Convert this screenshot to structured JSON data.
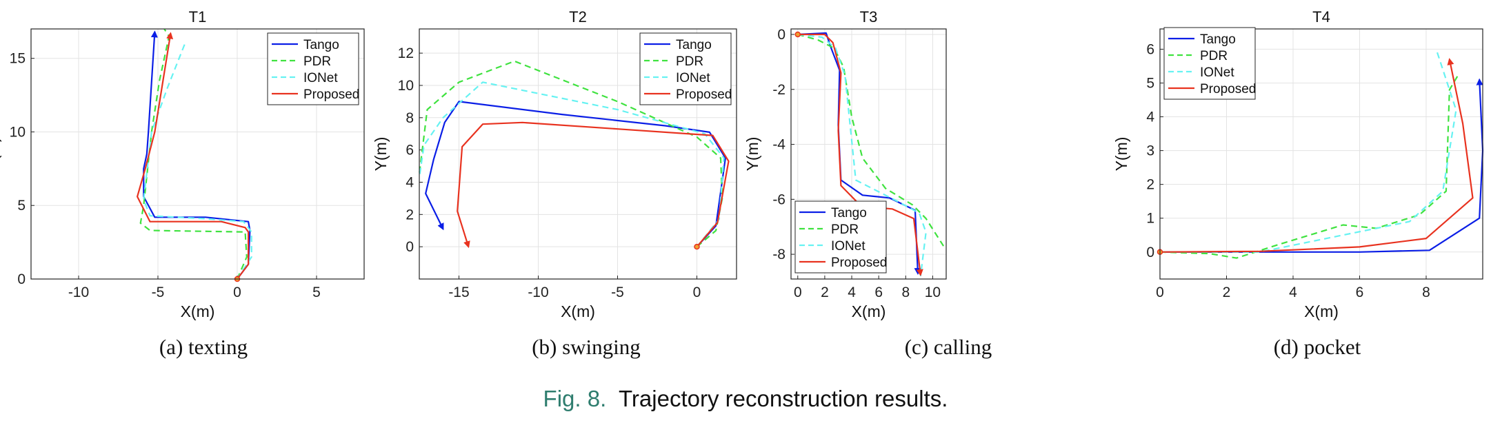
{
  "caption": {
    "label": "Fig. 8.",
    "text": "Trajectory reconstruction results."
  },
  "subcaptions": [
    "(a)  texting",
    "(b)  swinging",
    "(c)  calling",
    "(d)  pocket"
  ],
  "colors": {
    "Tango": "#0a1ee6",
    "PDR": "#3fe23f",
    "IONet": "#66f2f2",
    "Proposed": "#e8321f"
  },
  "series_names": [
    "Tango",
    "PDR",
    "IONet",
    "Proposed"
  ],
  "chart_data": [
    {
      "type": "line",
      "title": "T1",
      "xlabel": "X(m)",
      "ylabel": "Y(m)",
      "xlim": [
        -13,
        8
      ],
      "ylim": [
        0,
        17
      ],
      "xticks": [
        -10,
        -5,
        0,
        5
      ],
      "yticks": [
        0,
        5,
        10,
        15
      ],
      "xticklabels": [
        "-10",
        "-5",
        "0",
        "5"
      ],
      "yticklabels": [
        "0",
        "5",
        "10",
        "15"
      ],
      "legend": "top-right",
      "grid": true,
      "arrow_series": [
        "Tango",
        "Proposed"
      ],
      "series": [
        {
          "name": "Tango",
          "x": [
            0,
            0.7,
            0.8,
            0.7,
            -2,
            -5.2,
            -5.9,
            -5.9,
            -5.7,
            -5.6,
            -5.2
          ],
          "y": [
            0,
            1,
            3.3,
            3.9,
            4.2,
            4.2,
            5.6,
            7.5,
            8.5,
            10,
            16.8
          ]
        },
        {
          "name": "PDR",
          "x": [
            0,
            0.6,
            0.5,
            -5.5,
            -6.1,
            -5.9,
            -5.4,
            -4.9,
            -4.3,
            -4.6
          ],
          "y": [
            0,
            1.5,
            3.2,
            3.3,
            3.8,
            5,
            10,
            13.5,
            16.5,
            17
          ]
        },
        {
          "name": "IONet",
          "x": [
            0,
            0.9,
            0.9,
            0.4,
            -2,
            -5.5,
            -5.9,
            -5.4,
            -4.4,
            -3.3
          ],
          "y": [
            0,
            1.5,
            3.2,
            3.9,
            4.1,
            4.3,
            5.4,
            10,
            13,
            16
          ]
        },
        {
          "name": "Proposed",
          "x": [
            0,
            0.7,
            0.7,
            0.5,
            -1,
            -5.5,
            -6.3,
            -5.8,
            -5.2,
            -4.2
          ],
          "y": [
            0,
            1,
            3.2,
            3.5,
            3.9,
            3.9,
            5.6,
            7.5,
            10,
            16.7
          ]
        }
      ]
    },
    {
      "type": "line",
      "title": "T2",
      "xlabel": "X(m)",
      "ylabel": "Y(m)",
      "xlim": [
        -17.5,
        2.5
      ],
      "ylim": [
        -2,
        13.5
      ],
      "xticks": [
        -15,
        -10,
        -5,
        0
      ],
      "yticks": [
        0,
        2,
        4,
        6,
        8,
        10,
        12
      ],
      "xticklabels": [
        "-15",
        "-10",
        "-5",
        "0"
      ],
      "yticklabels": [
        "0",
        "2",
        "4",
        "6",
        "8",
        "10",
        "12"
      ],
      "legend": "top-right",
      "grid": true,
      "arrow_series": [
        "Tango",
        "Proposed"
      ],
      "series": [
        {
          "name": "Tango",
          "x": [
            0,
            1.2,
            1.8,
            0.8,
            -2,
            -8.5,
            -15,
            -15.9,
            -16.6,
            -17.1,
            -16
          ],
          "y": [
            0,
            1.3,
            5.5,
            7.1,
            7.5,
            8.2,
            9,
            7.7,
            5.4,
            3.3,
            1.1
          ]
        },
        {
          "name": "PDR",
          "x": [
            0,
            1.2,
            1.6,
            1.5,
            0,
            -5,
            -11.5,
            -15,
            -17,
            -17.5
          ],
          "y": [
            0,
            1,
            3,
            5.5,
            6.8,
            9,
            11.5,
            10.2,
            8.5,
            4.5
          ]
        },
        {
          "name": "IONet",
          "x": [
            0,
            1.4,
            1.7,
            0.5,
            -5,
            -13.5,
            -16,
            -17.2,
            -17.5
          ],
          "y": [
            0,
            1.7,
            5.5,
            7,
            8.5,
            10.2,
            8,
            6.3,
            4.3
          ]
        },
        {
          "name": "Proposed",
          "x": [
            0,
            1.3,
            2,
            1,
            -5,
            -11,
            -13.5,
            -14.8,
            -15.1,
            -14.4
          ],
          "y": [
            0,
            1.5,
            5.3,
            6.9,
            7.3,
            7.7,
            7.6,
            6.2,
            2.2,
            0
          ]
        }
      ]
    },
    {
      "type": "line",
      "title": "T3",
      "xlabel": "X(m)",
      "ylabel": "Y(m)",
      "xlim": [
        -0.5,
        11
      ],
      "ylim": [
        -8.9,
        0.2
      ],
      "xticks": [
        0,
        2,
        4,
        6,
        8,
        10
      ],
      "yticks": [
        -8,
        -6,
        -4,
        -2,
        0
      ],
      "xticklabels": [
        "0",
        "2",
        "4",
        "6",
        "8",
        "10"
      ],
      "yticklabels": [
        "-8",
        "-6",
        "-4",
        "-2",
        "0"
      ],
      "legend": "bottom-left",
      "grid": true,
      "arrow_series": [
        "Tango",
        "Proposed"
      ],
      "series": [
        {
          "name": "Tango",
          "x": [
            0,
            2.1,
            2.4,
            3.1,
            3,
            3.2,
            4.8,
            6.8,
            8.7,
            8.9
          ],
          "y": [
            0,
            0.05,
            -0.4,
            -1.3,
            -3.3,
            -5.3,
            -5.85,
            -5.95,
            -6.4,
            -8.7
          ]
        },
        {
          "name": "PDR",
          "x": [
            0,
            1.5,
            2.7,
            3.4,
            4,
            4.8,
            6.5,
            8.5,
            9.5,
            10.8
          ],
          "y": [
            0,
            -0.2,
            -0.5,
            -1.2,
            -3,
            -4.5,
            -5.6,
            -6.2,
            -6.7,
            -7.7
          ]
        },
        {
          "name": "IONet",
          "x": [
            0,
            1.8,
            2.8,
            3.5,
            4.3,
            7.5,
            9,
            9.5,
            9.1
          ],
          "y": [
            0,
            -0.1,
            -0.5,
            -1.5,
            -5.3,
            -6.1,
            -6.5,
            -7.2,
            -8.8
          ]
        },
        {
          "name": "Proposed",
          "x": [
            0,
            2,
            2.6,
            3.2,
            3,
            3.2,
            4.7,
            7,
            8.6,
            9.1
          ],
          "y": [
            0,
            0,
            -0.3,
            -1.4,
            -3.5,
            -5.5,
            -6.25,
            -6.35,
            -6.7,
            -8.75
          ]
        }
      ]
    },
    {
      "type": "line",
      "title": "T4",
      "xlabel": "X(m)",
      "ylabel": "Y(m)",
      "xlim": [
        0,
        9.7
      ],
      "ylim": [
        -0.8,
        6.6
      ],
      "xticks": [
        0,
        2,
        4,
        6,
        8
      ],
      "yticks": [
        0,
        1,
        2,
        3,
        4,
        5,
        6
      ],
      "xticklabels": [
        "0",
        "2",
        "4",
        "6",
        "8"
      ],
      "yticklabels": [
        "0",
        "1",
        "2",
        "3",
        "4",
        "5",
        "6"
      ],
      "legend": "top-left",
      "grid": true,
      "arrow_series": [
        "Tango",
        "Proposed"
      ],
      "series": [
        {
          "name": "Tango",
          "x": [
            0,
            4,
            6,
            8.1,
            9.6,
            9.7,
            9.6
          ],
          "y": [
            0,
            0,
            0,
            0.05,
            1,
            3,
            5.1
          ]
        },
        {
          "name": "PDR",
          "x": [
            0,
            1.5,
            2.3,
            3.5,
            5.5,
            6.5,
            7.8,
            8.6,
            8.7,
            9
          ],
          "y": [
            0,
            -0.05,
            -0.18,
            0.2,
            0.8,
            0.7,
            1.1,
            1.8,
            4.8,
            5.3
          ]
        },
        {
          "name": "IONet",
          "x": [
            0,
            3,
            5.5,
            7.5,
            8.5,
            8.9,
            8.3
          ],
          "y": [
            0,
            0,
            0.5,
            0.9,
            1.8,
            4.2,
            6
          ]
        },
        {
          "name": "Proposed",
          "x": [
            0,
            3,
            6,
            8,
            9.4,
            9.1,
            8.7
          ],
          "y": [
            0,
            0.02,
            0.15,
            0.4,
            1.6,
            3.8,
            5.7
          ]
        }
      ]
    }
  ]
}
